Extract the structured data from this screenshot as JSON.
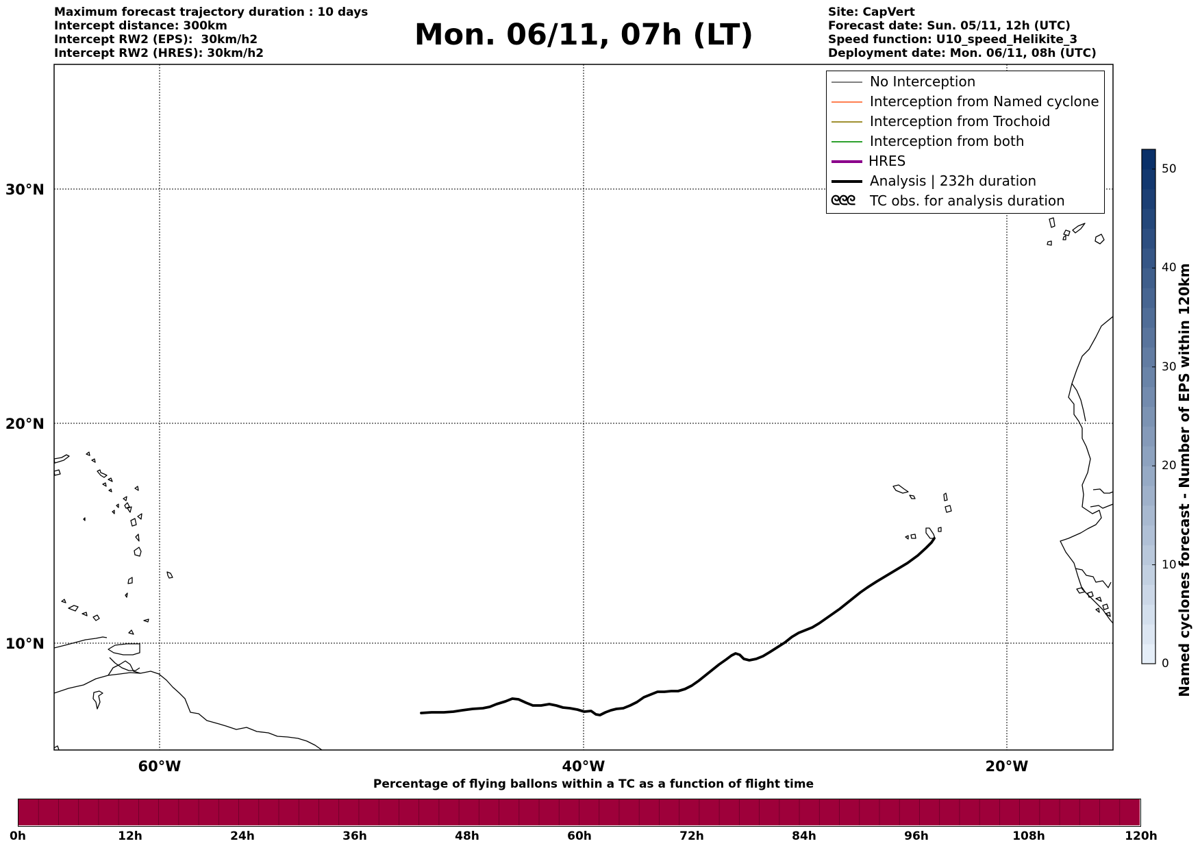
{
  "header": {
    "left_lines": [
      "Maximum forecast trajectory duration : 10 days",
      "Intercept distance: 300km",
      "Intercept RW2 (EPS):  30km/h2",
      "Intercept RW2 (HRES): 30km/h2"
    ],
    "title": "Mon. 06/11, 07h (LT)",
    "right_lines": [
      "Site: CapVert",
      "Forecast date: Sun. 05/11, 12h (UTC)",
      "Speed function: U10_speed_Helikite_3",
      "Deployment date: Mon. 06/11, 08h (UTC)"
    ]
  },
  "map": {
    "lat_labels": [
      "30°N",
      "20°N",
      "10°N"
    ],
    "lon_labels": [
      "60°W",
      "40°W",
      "20°W"
    ],
    "lon_range": [
      -65,
      -15
    ],
    "lat_range": [
      5.3,
      35.3
    ],
    "trajectory_color": "#000000"
  },
  "legend": {
    "items": [
      {
        "label": "No Interception",
        "color": "#808080",
        "style": "thin"
      },
      {
        "label": "Interception from Named cyclone",
        "color": "#ff7f50",
        "style": "thin"
      },
      {
        "label": "Interception from Trochoid",
        "color": "#a09030",
        "style": "thin"
      },
      {
        "label": "Interception from both",
        "color": "#2ca02c",
        "style": "thin"
      },
      {
        "label": "HRES",
        "color": "#8b008b",
        "style": "thick"
      },
      {
        "label": "Analysis | 232h duration",
        "color": "#000000",
        "style": "thick"
      },
      {
        "label": "TC obs. for analysis duration",
        "color": "#000000",
        "style": "symbol"
      }
    ],
    "tc_symbol": "ᘓᘓᘓ"
  },
  "colorbar": {
    "label": "Named cyclones forecast - Number of EPS within 120km",
    "ticks": [
      "0",
      "10",
      "20",
      "30",
      "40",
      "50"
    ],
    "tick_values": [
      0,
      10,
      20,
      30,
      40,
      50
    ],
    "max": 52,
    "color_low": "#e5eef8",
    "color_high": "#0a3069"
  },
  "timebar": {
    "title": "Percentage of flying ballons within a TC as a function of flight time",
    "labels": [
      "0h",
      "12h",
      "24h",
      "36h",
      "48h",
      "60h",
      "72h",
      "84h",
      "96h",
      "108h",
      "120h"
    ],
    "fill_color": "#9e003a",
    "segments": 56
  }
}
